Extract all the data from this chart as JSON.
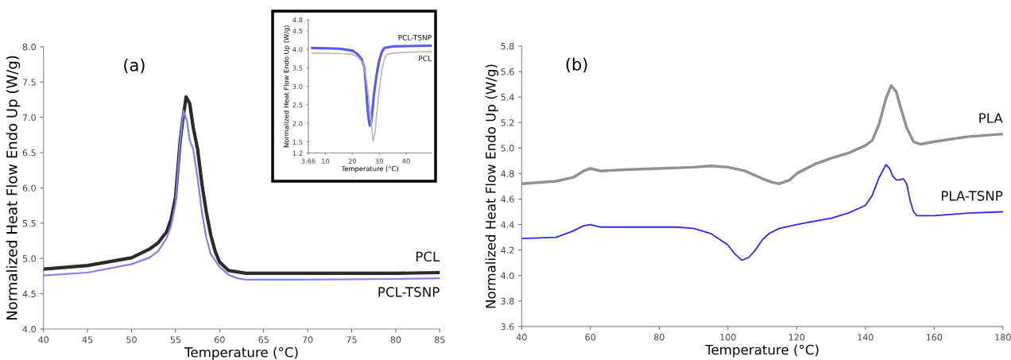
{
  "chart_data": [
    {
      "type": "line",
      "xlabel": "Temperature (°C)",
      "ylabel": "Normalized Heat Flow Endo Up (W/g)",
      "annotations": [
        "(a)"
      ],
      "xlim": [
        40,
        85
      ],
      "ylim": [
        4.0,
        8.0
      ],
      "xticks": [
        40,
        45,
        50,
        55,
        60,
        65,
        70,
        75,
        80,
        85
      ],
      "yticks": [
        {
          "value": 4.0,
          "label": "4.0"
        },
        4.5,
        {
          "value": 5.0,
          "label": "5.0"
        },
        5.5,
        {
          "value": 6.0,
          "label": "6.0"
        },
        6.5,
        {
          "value": 7.0,
          "label": "7.0"
        },
        7.5,
        {
          "value": 8.0,
          "label": "8.0"
        }
      ],
      "grid": false,
      "legend": false,
      "series": [
        {
          "name": "PCL",
          "color": "#2b2b2b",
          "x": [
            40,
            45,
            50,
            52,
            53,
            54,
            54.5,
            55,
            55.5,
            55.8,
            56.2,
            56.6,
            57,
            57.5,
            58,
            58.5,
            59,
            59.5,
            60,
            61,
            62,
            63,
            70,
            80,
            85
          ],
          "values": [
            4.85,
            4.9,
            5.01,
            5.13,
            5.22,
            5.38,
            5.56,
            5.87,
            6.64,
            6.95,
            7.29,
            7.2,
            6.86,
            6.55,
            6.05,
            5.65,
            5.33,
            5.1,
            4.95,
            4.83,
            4.81,
            4.79,
            4.79,
            4.79,
            4.8
          ]
        },
        {
          "name": "PCL-TSNP",
          "color": "#8080f0",
          "x": [
            40,
            45,
            50,
            52,
            53,
            54,
            54.5,
            55,
            55.5,
            55.9,
            56.3,
            56.6,
            57,
            57.5,
            58,
            58.5,
            59,
            60,
            61,
            62,
            63,
            70,
            80,
            85
          ],
          "values": [
            4.76,
            4.8,
            4.92,
            5.01,
            5.1,
            5.29,
            5.47,
            5.78,
            6.64,
            7.09,
            6.95,
            6.68,
            6.55,
            6.14,
            5.65,
            5.29,
            5.06,
            4.88,
            4.77,
            4.72,
            4.7,
            4.7,
            4.71,
            4.72
          ]
        }
      ]
    },
    {
      "type": "line",
      "xlabel": "Temperature (°C)",
      "ylabel": "Normalized Heat Flow Endo Up (W/g)",
      "xlim": [
        3.66,
        49.5
      ],
      "ylim": [
        1.2,
        4.8
      ],
      "xticks": [
        3.66,
        10,
        20,
        30,
        40
      ],
      "yticks": [
        1.2,
        1.5,
        {
          "value": 2.0,
          "label": "2.0"
        },
        2.5,
        {
          "value": 3.0,
          "label": "3.0"
        },
        3.5,
        {
          "value": 4.0,
          "label": "4.0"
        },
        4.5,
        4.8
      ],
      "grid": false,
      "legend": false,
      "series": [
        {
          "name": "PCL-TSNP",
          "color": "#5a5af0",
          "x": [
            5,
            15,
            20,
            22,
            23.5,
            24.5,
            25,
            25.5,
            26,
            26.5,
            27,
            27.5,
            28,
            29,
            30,
            31,
            32,
            35,
            40,
            49.5
          ],
          "values": [
            4.04,
            4.02,
            3.97,
            3.87,
            3.73,
            3.5,
            3.1,
            2.56,
            2.16,
            1.94,
            2.02,
            2.36,
            2.76,
            3.3,
            3.7,
            3.94,
            4.04,
            4.08,
            4.09,
            4.1
          ]
        },
        {
          "name": "PCL",
          "color": "#b8b8b8",
          "x": [
            5,
            15,
            20,
            22,
            24,
            25,
            26,
            27,
            27.7,
            28.5,
            29,
            30,
            31,
            32,
            33,
            35,
            40,
            49.5
          ],
          "values": [
            3.9,
            3.89,
            3.87,
            3.8,
            3.63,
            3.3,
            2.76,
            2.09,
            1.52,
            1.76,
            2.22,
            2.9,
            3.43,
            3.77,
            3.87,
            3.9,
            3.92,
            3.94
          ]
        }
      ]
    },
    {
      "type": "line",
      "xlabel": "Temperature (°C)",
      "ylabel": "Normalized Heat Flow Endo Up (W/g)",
      "annotations": [
        "(b)"
      ],
      "xlim": [
        40,
        180
      ],
      "ylim": [
        3.6,
        5.8
      ],
      "xticks": [
        40,
        60,
        80,
        100,
        120,
        140,
        160,
        180
      ],
      "yticks": [
        3.6,
        3.8,
        {
          "value": 4.0,
          "label": "4.0"
        },
        4.2,
        4.4,
        4.6,
        4.8,
        {
          "value": 5.0,
          "label": "5.0"
        },
        5.2,
        5.4,
        5.6,
        5.8
      ],
      "grid": false,
      "legend": false,
      "series": [
        {
          "name": "PLA",
          "color": "#909090",
          "x": [
            40,
            50,
            55,
            58,
            60,
            63,
            70,
            80,
            90,
            95,
            100,
            105,
            110,
            113,
            115,
            118,
            120,
            125,
            130,
            135,
            140,
            142,
            144,
            146,
            147.5,
            149,
            150,
            152,
            154,
            156,
            160,
            170,
            180
          ],
          "values": [
            4.72,
            4.74,
            4.77,
            4.82,
            4.84,
            4.82,
            4.83,
            4.84,
            4.85,
            4.86,
            4.85,
            4.82,
            4.76,
            4.73,
            4.72,
            4.75,
            4.8,
            4.87,
            4.92,
            4.96,
            5.02,
            5.06,
            5.19,
            5.39,
            5.49,
            5.44,
            5.34,
            5.16,
            5.05,
            5.03,
            5.05,
            5.09,
            5.11
          ]
        },
        {
          "name": "PLA-TSNP",
          "color": "#2a2af0",
          "x": [
            40,
            50,
            55,
            58,
            60,
            63,
            70,
            85,
            90,
            95,
            100,
            102,
            104,
            106,
            108,
            110,
            112,
            115,
            120,
            130,
            135,
            140,
            142,
            144,
            146,
            147,
            148,
            149,
            150,
            151,
            152,
            153,
            154,
            155,
            160,
            170,
            180
          ],
          "values": [
            4.29,
            4.3,
            4.35,
            4.39,
            4.4,
            4.38,
            4.38,
            4.38,
            4.37,
            4.33,
            4.24,
            4.17,
            4.12,
            4.14,
            4.2,
            4.28,
            4.33,
            4.37,
            4.4,
            4.45,
            4.49,
            4.55,
            4.63,
            4.77,
            4.87,
            4.84,
            4.78,
            4.75,
            4.75,
            4.76,
            4.72,
            4.59,
            4.5,
            4.47,
            4.47,
            4.49,
            4.5
          ]
        }
      ]
    }
  ]
}
